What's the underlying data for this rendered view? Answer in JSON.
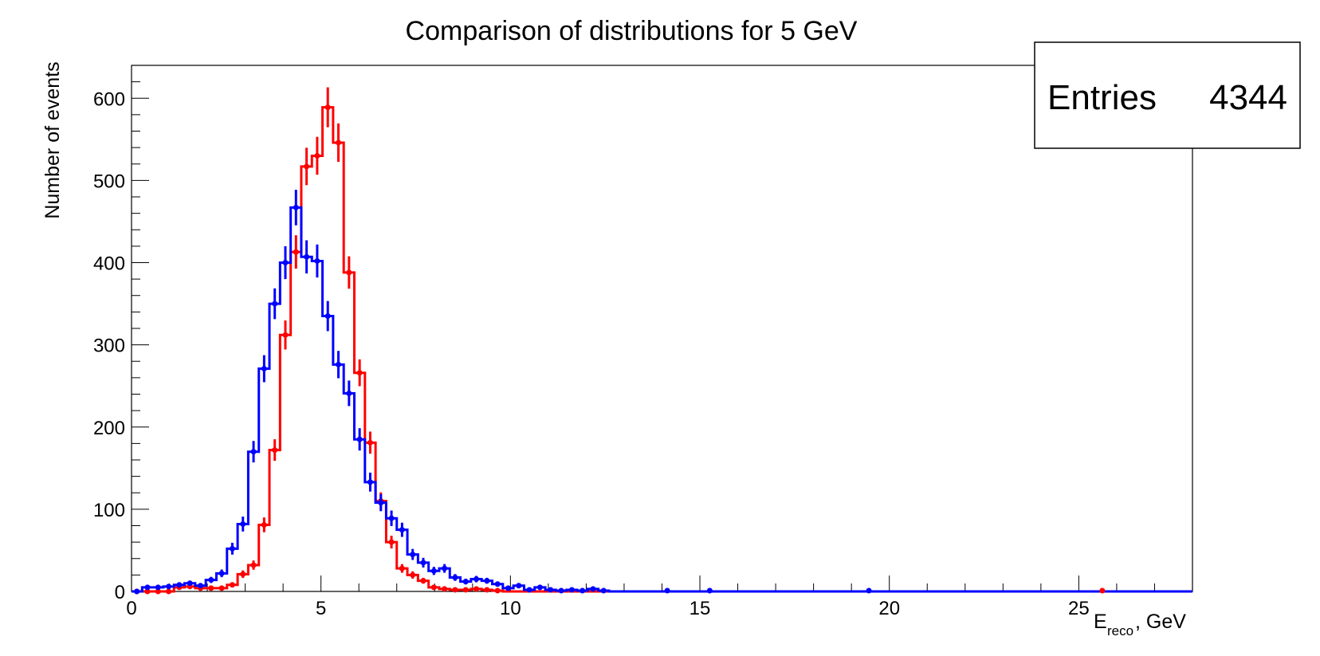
{
  "chart_data": {
    "type": "histogram",
    "title": "Comparison of distributions for 5 GeV",
    "ylabel": "Number of events",
    "xlabel_main": "E",
    "xlabel_sub": "reco",
    "xlabel_tail": ", GeV",
    "xlim": [
      0,
      28
    ],
    "ylim": [
      0,
      640
    ],
    "bin_width": 0.28,
    "x_ticks": [
      0,
      5,
      10,
      15,
      20,
      25
    ],
    "y_ticks": [
      0,
      100,
      200,
      300,
      400,
      500,
      600
    ],
    "grid": false,
    "stats": {
      "label": "Entries",
      "value": "4344",
      "placement": "top-right"
    },
    "series": [
      {
        "color": "#0000ff",
        "values": [
          0,
          5,
          5,
          6,
          8,
          10,
          7,
          14,
          22,
          52,
          82,
          170,
          271,
          350,
          400,
          467,
          407,
          402,
          335,
          276,
          241,
          185,
          133,
          108,
          89,
          75,
          45,
          35,
          25,
          28,
          17,
          12,
          15,
          13,
          9,
          4,
          7,
          2,
          5,
          2,
          1,
          2,
          1,
          3,
          1,
          0
        ]
      },
      {
        "color": "#ff0000",
        "values": [
          0,
          0,
          0,
          0,
          5,
          6,
          4,
          4,
          4,
          8,
          21,
          32,
          81,
          172,
          312,
          413,
          517,
          530,
          589,
          546,
          388,
          266,
          181,
          110,
          60,
          28,
          20,
          13,
          5,
          3,
          2,
          2,
          3,
          2,
          1,
          0,
          0,
          0,
          0,
          0,
          0,
          0,
          0,
          0,
          0,
          0
        ]
      }
    ],
    "sparse_points": [
      {
        "series": 0,
        "x": 14.14,
        "y": 1
      },
      {
        "series": 0,
        "x": 15.26,
        "y": 1
      },
      {
        "series": 0,
        "x": 19.46,
        "y": 1
      },
      {
        "series": 1,
        "x": 25.62,
        "y": 1
      }
    ]
  }
}
